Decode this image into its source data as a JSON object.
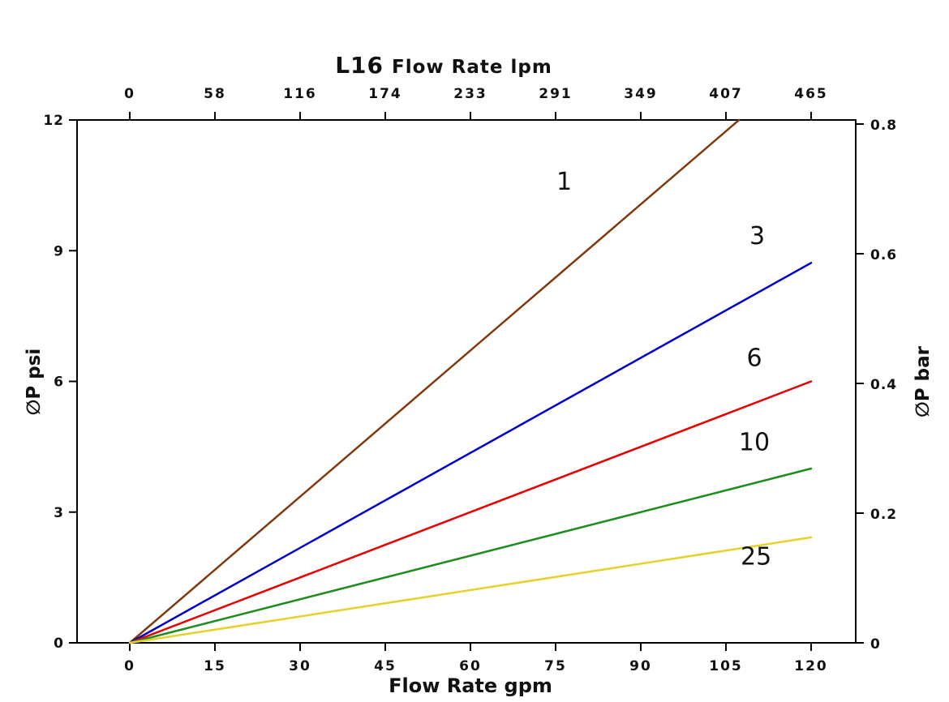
{
  "chart_data": {
    "type": "line",
    "title_model": "L16",
    "title_axis": "Flow Rate lpm",
    "xlabel_bottom": "Flow Rate gpm",
    "ylabel_left": "∅P psi",
    "ylabel_right": "∅P bar",
    "x_bottom": {
      "label": "Flow Rate gpm",
      "unit": "gpm",
      "ticks": [
        0,
        15,
        30,
        45,
        60,
        75,
        90,
        105,
        120
      ],
      "range": [
        0,
        120
      ]
    },
    "x_top": {
      "label": "Flow Rate lpm",
      "unit": "lpm",
      "ticks": [
        0,
        58,
        116,
        174,
        233,
        291,
        349,
        407,
        465
      ],
      "range": [
        0,
        465
      ]
    },
    "y_left": {
      "label": "∅P psi",
      "unit": "psi",
      "ticks": [
        0,
        3,
        6,
        9,
        12
      ],
      "range": [
        0,
        12
      ]
    },
    "y_right": {
      "label": "∅P bar",
      "unit": "bar",
      "ticks": [
        0,
        0.2,
        0.4,
        0.6,
        0.8
      ],
      "range": [
        0,
        0.8
      ]
    },
    "grid": false,
    "series": [
      {
        "name": "1",
        "color": "#7e3a0e",
        "points": [
          [
            0,
            0
          ],
          [
            107.3,
            12
          ]
        ],
        "label": {
          "x": 76.5,
          "y": 10.4
        }
      },
      {
        "name": "3",
        "color": "#0000cc",
        "points": [
          [
            0,
            0
          ],
          [
            120,
            8.72
          ]
        ],
        "label": {
          "x": 110.5,
          "y": 9.15
        }
      },
      {
        "name": "6",
        "color": "#e60000",
        "points": [
          [
            0,
            0
          ],
          [
            120,
            6.0
          ]
        ],
        "label": {
          "x": 110,
          "y": 6.35
        }
      },
      {
        "name": "10",
        "color": "#1e8c1e",
        "points": [
          [
            0,
            0
          ],
          [
            120,
            4.0
          ]
        ],
        "label": {
          "x": 110,
          "y": 4.42
        }
      },
      {
        "name": "25",
        "color": "#e6d02a",
        "points": [
          [
            0,
            0
          ],
          [
            120,
            2.42
          ]
        ],
        "label": {
          "x": 110.3,
          "y": 1.8
        }
      }
    ]
  }
}
